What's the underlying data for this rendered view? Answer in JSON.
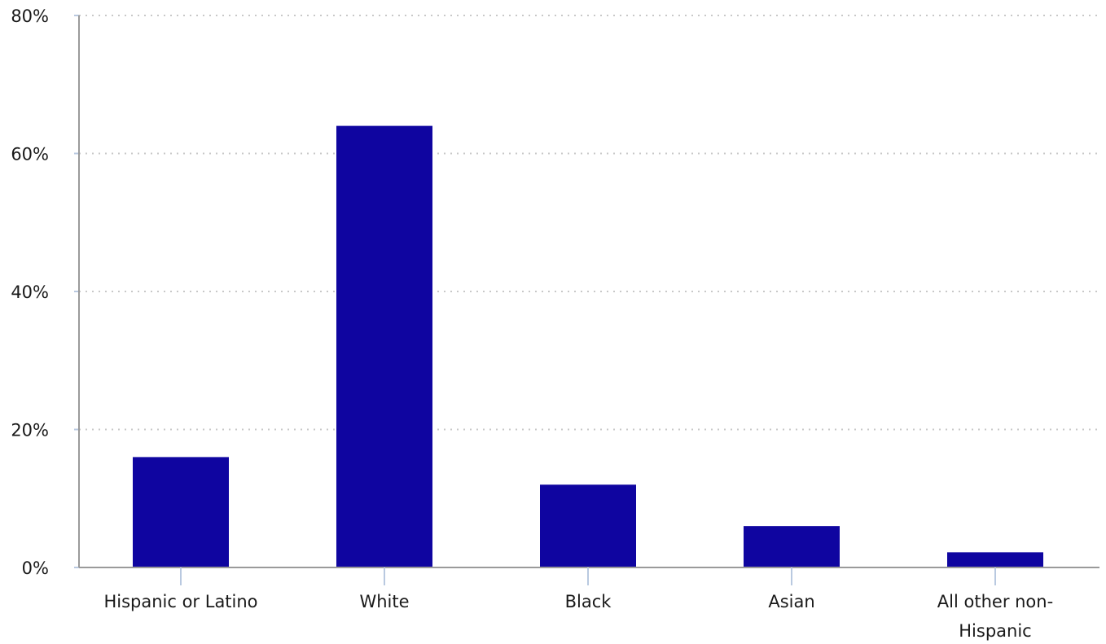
{
  "chart_data": {
    "type": "bar",
    "categories": [
      "Hispanic or Latino",
      "White",
      "Black",
      "Asian",
      "All other non-Hispanic"
    ],
    "category_label_lines": [
      [
        "Hispanic or Latino"
      ],
      [
        "White"
      ],
      [
        "Black"
      ],
      [
        "Asian"
      ],
      [
        "All other non-",
        "Hispanic"
      ]
    ],
    "values": [
      16,
      64,
      12,
      6,
      2.2
    ],
    "y_ticks": [
      0,
      20,
      40,
      60,
      80
    ],
    "y_tick_labels": [
      "0%",
      "20%",
      "40%",
      "60%",
      "80%"
    ],
    "ylim": [
      0,
      80
    ],
    "bar_color": "#0f05a0",
    "grid": true,
    "title": "",
    "xlabel": "",
    "ylabel": ""
  }
}
